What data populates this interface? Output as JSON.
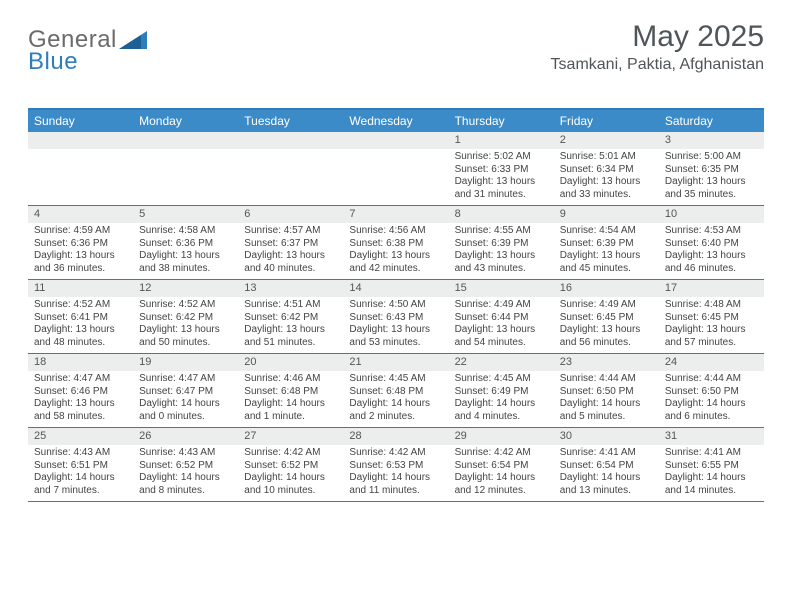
{
  "logo": {
    "text1": "General",
    "text2": "Blue"
  },
  "title": {
    "month_year": "May 2025",
    "location": "Tsamkani, Paktia, Afghanistan"
  },
  "colors": {
    "header_bg": "#3c8bc9",
    "border": "#2f7ebc",
    "daynum_bg": "#eceeee",
    "text": "#444444",
    "title_text": "#4f5559"
  },
  "weekdays": [
    "Sunday",
    "Monday",
    "Tuesday",
    "Wednesday",
    "Thursday",
    "Friday",
    "Saturday"
  ],
  "weeks": [
    [
      {
        "day": "",
        "sunrise": "",
        "sunset": "",
        "daylight": ""
      },
      {
        "day": "",
        "sunrise": "",
        "sunset": "",
        "daylight": ""
      },
      {
        "day": "",
        "sunrise": "",
        "sunset": "",
        "daylight": ""
      },
      {
        "day": "",
        "sunrise": "",
        "sunset": "",
        "daylight": ""
      },
      {
        "day": "1",
        "sunrise": "Sunrise: 5:02 AM",
        "sunset": "Sunset: 6:33 PM",
        "daylight": "Daylight: 13 hours and 31 minutes."
      },
      {
        "day": "2",
        "sunrise": "Sunrise: 5:01 AM",
        "sunset": "Sunset: 6:34 PM",
        "daylight": "Daylight: 13 hours and 33 minutes."
      },
      {
        "day": "3",
        "sunrise": "Sunrise: 5:00 AM",
        "sunset": "Sunset: 6:35 PM",
        "daylight": "Daylight: 13 hours and 35 minutes."
      }
    ],
    [
      {
        "day": "4",
        "sunrise": "Sunrise: 4:59 AM",
        "sunset": "Sunset: 6:36 PM",
        "daylight": "Daylight: 13 hours and 36 minutes."
      },
      {
        "day": "5",
        "sunrise": "Sunrise: 4:58 AM",
        "sunset": "Sunset: 6:36 PM",
        "daylight": "Daylight: 13 hours and 38 minutes."
      },
      {
        "day": "6",
        "sunrise": "Sunrise: 4:57 AM",
        "sunset": "Sunset: 6:37 PM",
        "daylight": "Daylight: 13 hours and 40 minutes."
      },
      {
        "day": "7",
        "sunrise": "Sunrise: 4:56 AM",
        "sunset": "Sunset: 6:38 PM",
        "daylight": "Daylight: 13 hours and 42 minutes."
      },
      {
        "day": "8",
        "sunrise": "Sunrise: 4:55 AM",
        "sunset": "Sunset: 6:39 PM",
        "daylight": "Daylight: 13 hours and 43 minutes."
      },
      {
        "day": "9",
        "sunrise": "Sunrise: 4:54 AM",
        "sunset": "Sunset: 6:39 PM",
        "daylight": "Daylight: 13 hours and 45 minutes."
      },
      {
        "day": "10",
        "sunrise": "Sunrise: 4:53 AM",
        "sunset": "Sunset: 6:40 PM",
        "daylight": "Daylight: 13 hours and 46 minutes."
      }
    ],
    [
      {
        "day": "11",
        "sunrise": "Sunrise: 4:52 AM",
        "sunset": "Sunset: 6:41 PM",
        "daylight": "Daylight: 13 hours and 48 minutes."
      },
      {
        "day": "12",
        "sunrise": "Sunrise: 4:52 AM",
        "sunset": "Sunset: 6:42 PM",
        "daylight": "Daylight: 13 hours and 50 minutes."
      },
      {
        "day": "13",
        "sunrise": "Sunrise: 4:51 AM",
        "sunset": "Sunset: 6:42 PM",
        "daylight": "Daylight: 13 hours and 51 minutes."
      },
      {
        "day": "14",
        "sunrise": "Sunrise: 4:50 AM",
        "sunset": "Sunset: 6:43 PM",
        "daylight": "Daylight: 13 hours and 53 minutes."
      },
      {
        "day": "15",
        "sunrise": "Sunrise: 4:49 AM",
        "sunset": "Sunset: 6:44 PM",
        "daylight": "Daylight: 13 hours and 54 minutes."
      },
      {
        "day": "16",
        "sunrise": "Sunrise: 4:49 AM",
        "sunset": "Sunset: 6:45 PM",
        "daylight": "Daylight: 13 hours and 56 minutes."
      },
      {
        "day": "17",
        "sunrise": "Sunrise: 4:48 AM",
        "sunset": "Sunset: 6:45 PM",
        "daylight": "Daylight: 13 hours and 57 minutes."
      }
    ],
    [
      {
        "day": "18",
        "sunrise": "Sunrise: 4:47 AM",
        "sunset": "Sunset: 6:46 PM",
        "daylight": "Daylight: 13 hours and 58 minutes."
      },
      {
        "day": "19",
        "sunrise": "Sunrise: 4:47 AM",
        "sunset": "Sunset: 6:47 PM",
        "daylight": "Daylight: 14 hours and 0 minutes."
      },
      {
        "day": "20",
        "sunrise": "Sunrise: 4:46 AM",
        "sunset": "Sunset: 6:48 PM",
        "daylight": "Daylight: 14 hours and 1 minute."
      },
      {
        "day": "21",
        "sunrise": "Sunrise: 4:45 AM",
        "sunset": "Sunset: 6:48 PM",
        "daylight": "Daylight: 14 hours and 2 minutes."
      },
      {
        "day": "22",
        "sunrise": "Sunrise: 4:45 AM",
        "sunset": "Sunset: 6:49 PM",
        "daylight": "Daylight: 14 hours and 4 minutes."
      },
      {
        "day": "23",
        "sunrise": "Sunrise: 4:44 AM",
        "sunset": "Sunset: 6:50 PM",
        "daylight": "Daylight: 14 hours and 5 minutes."
      },
      {
        "day": "24",
        "sunrise": "Sunrise: 4:44 AM",
        "sunset": "Sunset: 6:50 PM",
        "daylight": "Daylight: 14 hours and 6 minutes."
      }
    ],
    [
      {
        "day": "25",
        "sunrise": "Sunrise: 4:43 AM",
        "sunset": "Sunset: 6:51 PM",
        "daylight": "Daylight: 14 hours and 7 minutes."
      },
      {
        "day": "26",
        "sunrise": "Sunrise: 4:43 AM",
        "sunset": "Sunset: 6:52 PM",
        "daylight": "Daylight: 14 hours and 8 minutes."
      },
      {
        "day": "27",
        "sunrise": "Sunrise: 4:42 AM",
        "sunset": "Sunset: 6:52 PM",
        "daylight": "Daylight: 14 hours and 10 minutes."
      },
      {
        "day": "28",
        "sunrise": "Sunrise: 4:42 AM",
        "sunset": "Sunset: 6:53 PM",
        "daylight": "Daylight: 14 hours and 11 minutes."
      },
      {
        "day": "29",
        "sunrise": "Sunrise: 4:42 AM",
        "sunset": "Sunset: 6:54 PM",
        "daylight": "Daylight: 14 hours and 12 minutes."
      },
      {
        "day": "30",
        "sunrise": "Sunrise: 4:41 AM",
        "sunset": "Sunset: 6:54 PM",
        "daylight": "Daylight: 14 hours and 13 minutes."
      },
      {
        "day": "31",
        "sunrise": "Sunrise: 4:41 AM",
        "sunset": "Sunset: 6:55 PM",
        "daylight": "Daylight: 14 hours and 14 minutes."
      }
    ]
  ]
}
